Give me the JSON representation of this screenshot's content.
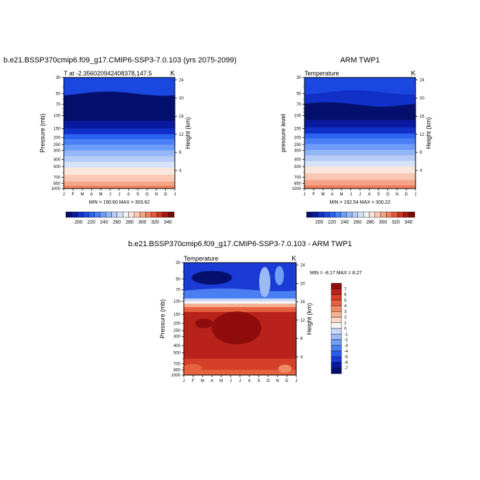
{
  "chart_data": [
    {
      "type": "heatmap",
      "title": "b.e21.BSSP370cmip6.f09_g17.CMIP6-SSP3-7.0.103 (yrs 2075-2099)",
      "subtitle_left": "T at -2.356020942408378,147.5",
      "subtitle_right": "K",
      "ylabel": "Pressure (mb)",
      "ylabel_right": "Height (km)",
      "x_ticks": [
        "J",
        "F",
        "M",
        "A",
        "M",
        "J",
        "J",
        "A",
        "S",
        "O",
        "N",
        "D",
        "J"
      ],
      "y_ticks": [
        30,
        50,
        70,
        100,
        150,
        200,
        250,
        300,
        400,
        500,
        700,
        850,
        1000
      ],
      "height_ticks": [
        24,
        20,
        16,
        12,
        8,
        4
      ],
      "stats": "MIN = 190.60 MAX = 303.62",
      "colorbar_labels": [
        200,
        220,
        240,
        260,
        280,
        300,
        320,
        340
      ]
    },
    {
      "type": "heatmap",
      "title": "ARM TWP1",
      "subtitle_left": "Temperature",
      "subtitle_right": "K",
      "ylabel": "pressure level",
      "ylabel_right": "Height (km)",
      "x_ticks": [
        "J",
        "F",
        "M",
        "A",
        "M",
        "J",
        "J",
        "A",
        "S",
        "O",
        "N",
        "D",
        "J"
      ],
      "y_ticks": [
        30,
        50,
        70,
        100,
        150,
        200,
        250,
        300,
        400,
        500,
        700,
        850,
        1000
      ],
      "height_ticks": [
        24,
        20,
        16,
        12,
        8,
        4
      ],
      "stats": "MIN = 192.54 MAX = 300.22",
      "colorbar_labels": [
        200,
        220,
        240,
        260,
        280,
        300,
        320,
        340
      ]
    },
    {
      "type": "heatmap",
      "title": "b.e21.BSSP370cmip6.f09_g17.CMIP6-SSP3-7.0.103 - ARM TWP1",
      "subtitle_left": "Temperature",
      "subtitle_right": "K",
      "ylabel": "Pressure (mb)",
      "ylabel_right": "Height (km)",
      "x_ticks": [
        "J",
        "F",
        "M",
        "A",
        "M",
        "J",
        "J",
        "A",
        "S",
        "O",
        "N",
        "D",
        "J"
      ],
      "y_ticks": [
        30,
        50,
        70,
        100,
        150,
        200,
        250,
        300,
        400,
        500,
        700,
        850,
        1000
      ],
      "height_ticks": [
        24,
        20,
        16,
        12,
        8,
        4
      ],
      "stats": "MIN =  -8.17 MAX =   8.27",
      "colorbar_labels": [
        7,
        6,
        5,
        4,
        3,
        2,
        1,
        0,
        -1,
        -2,
        -3,
        -4,
        -5,
        -6,
        -7
      ]
    }
  ]
}
